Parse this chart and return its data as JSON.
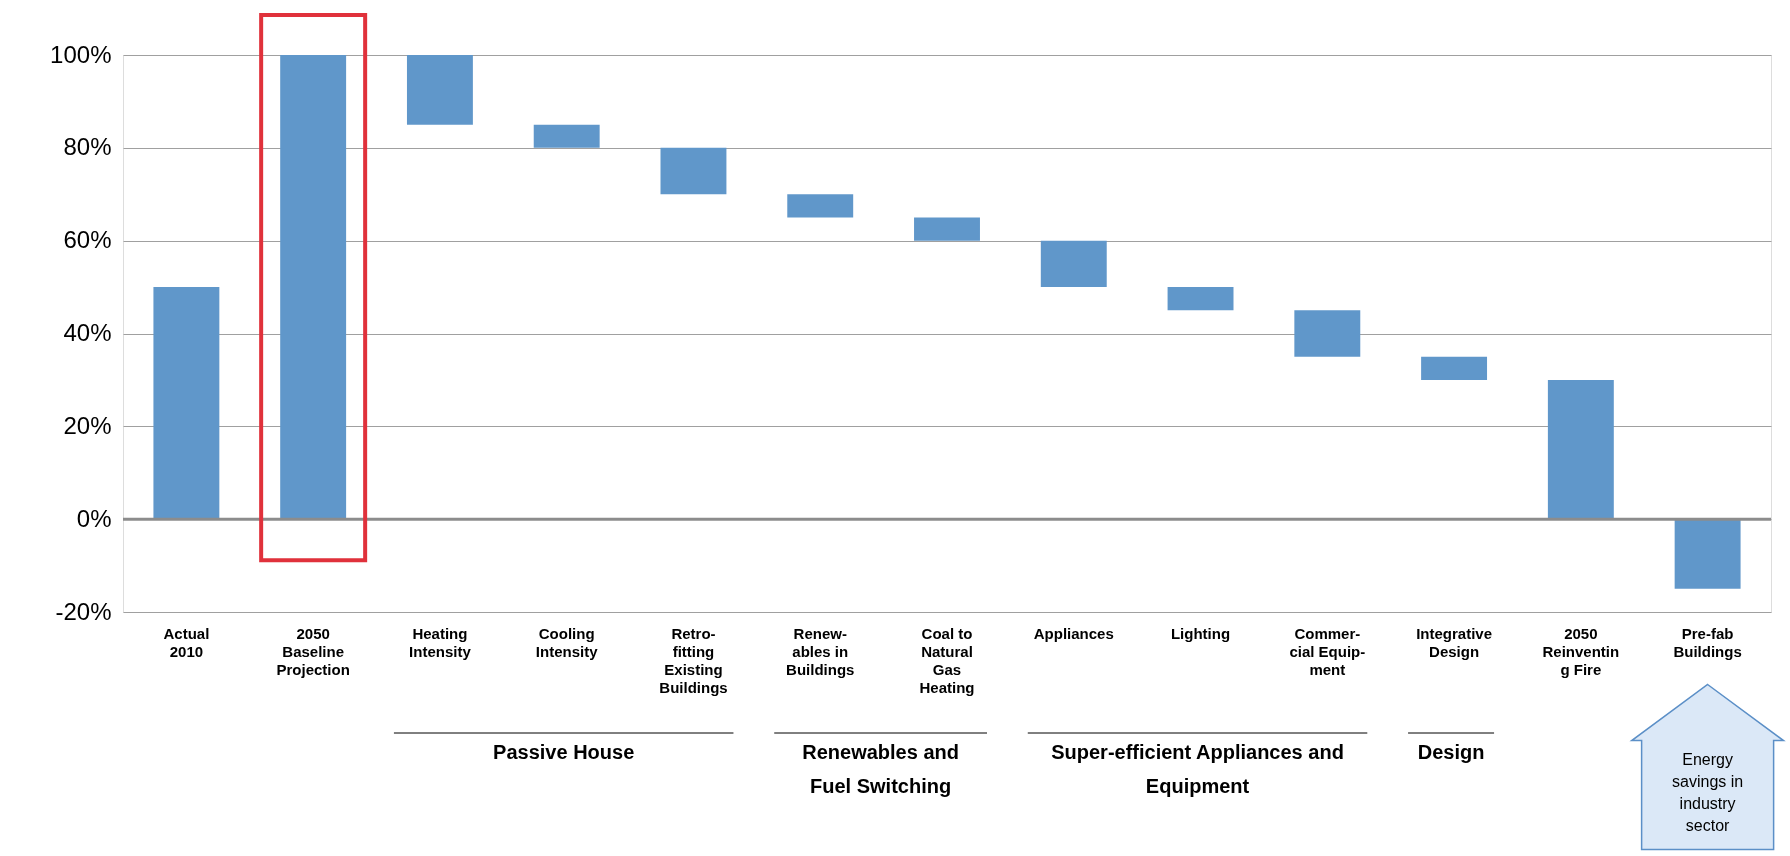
{
  "chart_data": {
    "type": "bar",
    "categories": [
      "Actual\n2010",
      "2050\nBaseline\nProjection",
      "Heating\nIntensity",
      "Cooling\nIntensity",
      "Retro-\nfitting\nExisting\nBuildings",
      "Renew-\nables  in\nBuildings",
      "Coal to\nNatural\nGas\nHeating",
      "Appliances",
      "Lighting",
      "Commer-\ncial Equip-\nment",
      "Integrative\nDesign",
      "2050\nReinventin\ng Fire",
      "Pre-fab\nBuildings"
    ],
    "base": [
      0,
      0,
      100,
      85,
      80,
      70,
      65,
      60,
      50,
      45,
      35,
      0,
      0
    ],
    "values": [
      50,
      100,
      -15,
      -5,
      -10,
      -5,
      -5,
      -10,
      -5,
      -10,
      -5,
      30,
      -15
    ],
    "color": "#6097ca",
    "ylim": [
      -20,
      100
    ],
    "yticks": [
      {
        "value": -20,
        "label": "-20%"
      },
      {
        "value": 0,
        "label": "0%"
      },
      {
        "value": 20,
        "label": "20%"
      },
      {
        "value": 40,
        "label": "40%"
      },
      {
        "value": 60,
        "label": "60%"
      },
      {
        "value": 80,
        "label": "80%"
      },
      {
        "value": 100,
        "label": "100%"
      }
    ],
    "grid": "y",
    "annotations": [
      "Passive House",
      "Renewables and\nFuel Switching",
      "Super-efficient Appliances and\nEquipment",
      "Design",
      "Energy\nsavings in\nindustry\nsector"
    ]
  }
}
